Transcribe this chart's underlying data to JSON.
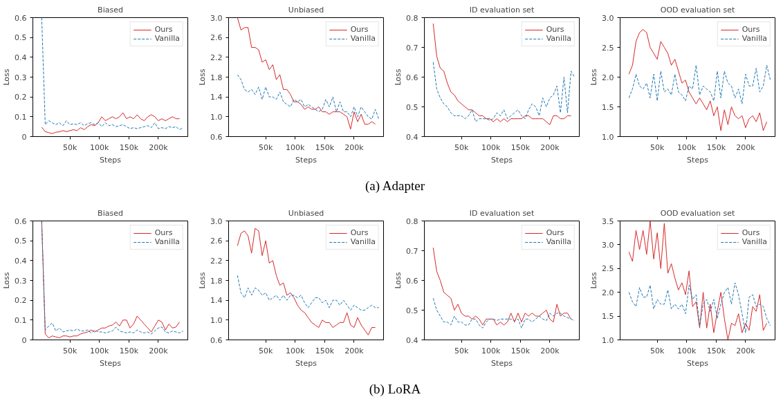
{
  "chart_data": [
    {
      "type": "line",
      "title": "Biased",
      "xlabel": "Steps",
      "ylabel": "Loss",
      "annotations": [
        "(a) Adapter"
      ],
      "xlim": [
        -13000,
        250000
      ],
      "xticks": [
        {
          "value": 50000,
          "label": "50k"
        },
        {
          "value": 100000,
          "label": "100k"
        },
        {
          "value": 150000,
          "label": "150k"
        },
        {
          "value": 200000,
          "label": "200k"
        }
      ],
      "ylim": [
        0,
        0.6
      ],
      "yticks": [
        0,
        0.1,
        0.2,
        0.3,
        0.4,
        0.5,
        0.6
      ],
      "grid": false,
      "legend": "top right",
      "x": [
        2000,
        8000,
        14000,
        20000,
        26000,
        32000,
        38000,
        44000,
        50000,
        56000,
        62000,
        68000,
        74000,
        80000,
        86000,
        92000,
        98000,
        104000,
        110000,
        116000,
        122000,
        128000,
        134000,
        140000,
        146000,
        152000,
        158000,
        164000,
        170000,
        176000,
        182000,
        188000,
        194000,
        200000,
        206000,
        212000,
        218000,
        224000,
        230000,
        236000,
        242000
      ],
      "series": [
        {
          "name": "Ours",
          "color": "#d62728",
          "line_style": "solid",
          "values": [
            0.047,
            0.025,
            0.02,
            0.015,
            0.022,
            0.024,
            0.03,
            0.025,
            0.03,
            0.035,
            0.03,
            0.045,
            0.035,
            0.05,
            0.06,
            0.055,
            0.07,
            0.1,
            0.08,
            0.09,
            0.1,
            0.09,
            0.1,
            0.12,
            0.09,
            0.1,
            0.09,
            0.11,
            0.09,
            0.08,
            0.1,
            0.11,
            0.1,
            0.08,
            0.09,
            0.08,
            0.09,
            0.1,
            0.09,
            0.09,
            null
          ]
        },
        {
          "name": "Vanilla",
          "color": "#1f77b4",
          "line_style": "dashed",
          "values": [
            0.6,
            0.06,
            0.08,
            0.07,
            0.06,
            0.07,
            0.055,
            0.08,
            0.06,
            0.065,
            0.06,
            0.07,
            0.055,
            0.065,
            0.07,
            0.06,
            0.07,
            0.05,
            0.07,
            0.055,
            0.06,
            0.05,
            0.055,
            0.06,
            0.05,
            0.04,
            0.045,
            0.04,
            0.045,
            0.05,
            0.055,
            0.045,
            0.07,
            0.04,
            0.045,
            0.04,
            0.05,
            0.045,
            0.05,
            0.035,
            0.045
          ]
        }
      ]
    },
    {
      "type": "line",
      "title": "Unbiased",
      "xlabel": "Steps",
      "ylabel": "Loss",
      "xlim": [
        -13000,
        250000
      ],
      "xticks": [
        {
          "value": 50000,
          "label": "50k"
        },
        {
          "value": 100000,
          "label": "100k"
        },
        {
          "value": 150000,
          "label": "150k"
        },
        {
          "value": 200000,
          "label": "200k"
        }
      ],
      "ylim": [
        0.6,
        3.0
      ],
      "yticks": [
        0.6,
        {
          "value": 1,
          "label": "1.0"
        },
        1.4,
        1.8,
        2.2,
        2.6,
        {
          "value": 3,
          "label": "3.0"
        }
      ],
      "grid": false,
      "legend": "top right",
      "x": [
        2000,
        8000,
        14000,
        20000,
        26000,
        32000,
        38000,
        44000,
        50000,
        56000,
        62000,
        68000,
        74000,
        80000,
        86000,
        92000,
        98000,
        104000,
        110000,
        116000,
        122000,
        128000,
        134000,
        140000,
        146000,
        152000,
        158000,
        164000,
        170000,
        176000,
        182000,
        188000,
        194000,
        200000,
        206000,
        212000,
        218000,
        224000,
        230000,
        236000,
        242000
      ],
      "series": [
        {
          "name": "Ours",
          "color": "#d62728",
          "line_style": "solid",
          "values": [
            3.0,
            2.75,
            2.8,
            2.8,
            2.4,
            2.4,
            2.35,
            2.1,
            2.15,
            1.95,
            2.05,
            1.75,
            1.85,
            1.55,
            1.55,
            1.45,
            1.3,
            1.3,
            1.25,
            1.15,
            1.2,
            1.15,
            1.15,
            1.2,
            1.1,
            1.1,
            1.05,
            1.1,
            1.1,
            1.1,
            1.05,
            1.0,
            0.75,
            1.1,
            0.9,
            1.05,
            0.85,
            0.85,
            0.9,
            0.85,
            null
          ]
        },
        {
          "name": "Vanilla",
          "color": "#1f77b4",
          "line_style": "dashed",
          "values": [
            1.85,
            1.75,
            1.55,
            1.5,
            1.55,
            1.45,
            1.6,
            1.35,
            1.6,
            1.4,
            1.4,
            1.35,
            1.5,
            1.3,
            1.25,
            1.2,
            1.35,
            1.3,
            1.35,
            1.2,
            1.25,
            1.2,
            1.15,
            1.1,
            1.15,
            1.35,
            1.2,
            1.4,
            1.1,
            1.3,
            1.1,
            1.1,
            1.0,
            1.2,
            1.0,
            1.2,
            1.1,
            1.0,
            0.95,
            1.15,
            0.95
          ]
        }
      ]
    },
    {
      "type": "line",
      "title": "ID evaluation set",
      "xlabel": "Steps",
      "ylabel": "Loss",
      "xlim": [
        -13000,
        250000
      ],
      "xticks": [
        {
          "value": 50000,
          "label": "50k"
        },
        {
          "value": 100000,
          "label": "100k"
        },
        {
          "value": 150000,
          "label": "150k"
        },
        {
          "value": 200000,
          "label": "200k"
        }
      ],
      "ylim": [
        0.4,
        0.8
      ],
      "yticks": [
        0.4,
        0.5,
        0.6,
        0.7,
        0.8
      ],
      "grid": false,
      "legend": "top right",
      "x": [
        2000,
        8000,
        14000,
        20000,
        26000,
        32000,
        38000,
        44000,
        50000,
        56000,
        62000,
        68000,
        74000,
        80000,
        86000,
        92000,
        98000,
        104000,
        110000,
        116000,
        122000,
        128000,
        134000,
        140000,
        146000,
        152000,
        158000,
        164000,
        170000,
        176000,
        182000,
        188000,
        194000,
        200000,
        206000,
        212000,
        218000,
        224000,
        230000,
        236000,
        242000
      ],
      "series": [
        {
          "name": "Ours",
          "color": "#d62728",
          "line_style": "solid",
          "values": [
            0.78,
            0.67,
            0.63,
            0.62,
            0.58,
            0.55,
            0.54,
            0.52,
            0.51,
            0.5,
            0.49,
            0.49,
            0.48,
            0.47,
            0.47,
            0.46,
            0.46,
            0.45,
            0.46,
            0.45,
            0.46,
            0.45,
            0.46,
            0.46,
            0.46,
            0.46,
            0.47,
            0.47,
            0.46,
            0.46,
            0.46,
            0.46,
            0.45,
            0.44,
            0.47,
            0.47,
            0.46,
            0.46,
            0.47,
            0.47,
            null
          ]
        },
        {
          "name": "Vanilla",
          "color": "#1f77b4",
          "line_style": "dashed",
          "values": [
            0.65,
            0.56,
            0.53,
            0.51,
            0.5,
            0.48,
            0.47,
            0.47,
            0.47,
            0.46,
            0.47,
            0.49,
            0.45,
            0.46,
            0.46,
            0.46,
            0.455,
            0.46,
            0.48,
            0.47,
            0.49,
            0.46,
            0.47,
            0.48,
            0.49,
            0.47,
            0.46,
            0.49,
            0.51,
            0.5,
            0.47,
            0.53,
            0.5,
            0.53,
            0.54,
            0.57,
            0.48,
            0.6,
            0.48,
            0.62,
            0.6
          ]
        }
      ]
    },
    {
      "type": "line",
      "title": "OOD evaluation set",
      "xlabel": "Steps",
      "ylabel": "Loss",
      "xlim": [
        -13000,
        250000
      ],
      "xticks": [
        {
          "value": 50000,
          "label": "50k"
        },
        {
          "value": 100000,
          "label": "100k"
        },
        {
          "value": 150000,
          "label": "150k"
        },
        {
          "value": 200000,
          "label": "200k"
        }
      ],
      "ylim": [
        1.0,
        3.0
      ],
      "yticks": [
        {
          "value": 1,
          "label": "1.0"
        },
        1.5,
        {
          "value": 2,
          "label": "2.0"
        },
        2.5,
        {
          "value": 3,
          "label": "3.0"
        }
      ],
      "grid": false,
      "legend": "top right",
      "x": [
        2000,
        8000,
        14000,
        20000,
        26000,
        32000,
        38000,
        44000,
        50000,
        56000,
        62000,
        68000,
        74000,
        80000,
        86000,
        92000,
        98000,
        104000,
        110000,
        116000,
        122000,
        128000,
        134000,
        140000,
        146000,
        152000,
        158000,
        164000,
        170000,
        176000,
        182000,
        188000,
        194000,
        200000,
        206000,
        212000,
        218000,
        224000,
        230000,
        236000,
        242000
      ],
      "series": [
        {
          "name": "Ours",
          "color": "#d62728",
          "line_style": "solid",
          "values": [
            2.05,
            2.2,
            2.6,
            2.75,
            2.8,
            2.75,
            2.5,
            2.4,
            2.3,
            2.6,
            2.5,
            2.4,
            2.2,
            2.3,
            2.1,
            1.9,
            1.95,
            1.75,
            1.65,
            1.55,
            1.65,
            1.55,
            1.45,
            1.6,
            1.35,
            1.5,
            1.1,
            1.45,
            1.2,
            1.5,
            1.35,
            1.3,
            1.35,
            1.15,
            1.3,
            1.35,
            1.25,
            1.4,
            1.1,
            1.25,
            null
          ]
        },
        {
          "name": "Vanilla",
          "color": "#1f77b4",
          "line_style": "dashed",
          "values": [
            1.65,
            1.8,
            2.05,
            1.85,
            1.8,
            1.9,
            1.65,
            2.05,
            1.6,
            2.1,
            1.75,
            1.8,
            1.7,
            2.05,
            1.75,
            1.7,
            1.6,
            1.85,
            1.8,
            2.2,
            1.7,
            1.85,
            1.8,
            1.75,
            1.6,
            2.1,
            1.65,
            2.1,
            1.9,
            1.85,
            1.65,
            1.8,
            1.55,
            2.05,
            1.85,
            1.85,
            2.15,
            1.75,
            1.85,
            2.2,
            1.95
          ]
        }
      ]
    },
    {
      "type": "line",
      "title": "Biased",
      "xlabel": "Steps",
      "ylabel": "Loss",
      "annotations": [
        "(b) LoRA"
      ],
      "xlim": [
        -13000,
        250000
      ],
      "xticks": [
        {
          "value": 50000,
          "label": "50k"
        },
        {
          "value": 100000,
          "label": "100k"
        },
        {
          "value": 150000,
          "label": "150k"
        },
        {
          "value": 200000,
          "label": "200k"
        }
      ],
      "ylim": [
        0,
        0.6
      ],
      "yticks": [
        0,
        0.1,
        0.2,
        0.3,
        0.4,
        0.5,
        0.6
      ],
      "grid": false,
      "legend": "top right",
      "x": [
        2000,
        8000,
        14000,
        20000,
        26000,
        32000,
        38000,
        44000,
        50000,
        56000,
        62000,
        68000,
        74000,
        80000,
        86000,
        92000,
        98000,
        104000,
        110000,
        116000,
        122000,
        128000,
        134000,
        140000,
        146000,
        152000,
        158000,
        164000,
        170000,
        176000,
        182000,
        188000,
        194000,
        200000,
        206000,
        212000,
        218000,
        224000,
        230000,
        236000,
        242000
      ],
      "series": [
        {
          "name": "Ours",
          "color": "#d62728",
          "line_style": "solid",
          "values": [
            0.6,
            0.03,
            0.01,
            0.02,
            0.015,
            0.01,
            0.02,
            0.02,
            0.015,
            0.02,
            0.02,
            0.03,
            0.035,
            0.04,
            0.05,
            0.04,
            0.05,
            0.06,
            0.06,
            0.07,
            0.075,
            0.09,
            0.07,
            0.1,
            0.1,
            0.06,
            0.08,
            0.12,
            0.1,
            0.08,
            0.06,
            0.04,
            0.07,
            0.1,
            0.09,
            0.05,
            0.08,
            0.06,
            0.065,
            0.09,
            null
          ]
        },
        {
          "name": "Vanilla",
          "color": "#1f77b4",
          "line_style": "dashed",
          "values": [
            0.6,
            0.05,
            0.07,
            0.085,
            0.045,
            0.06,
            0.04,
            0.045,
            0.05,
            0.045,
            0.055,
            0.045,
            0.045,
            0.05,
            0.035,
            0.05,
            0.04,
            0.04,
            0.035,
            0.04,
            0.045,
            0.065,
            0.045,
            0.04,
            0.035,
            0.04,
            0.035,
            0.05,
            0.04,
            0.035,
            0.04,
            0.03,
            0.045,
            0.06,
            0.065,
            0.04,
            0.035,
            0.045,
            0.04,
            0.035,
            0.045
          ]
        }
      ]
    },
    {
      "type": "line",
      "title": "Unbiased",
      "xlabel": "Steps",
      "ylabel": "Loss",
      "xlim": [
        -13000,
        250000
      ],
      "xticks": [
        {
          "value": 50000,
          "label": "50k"
        },
        {
          "value": 100000,
          "label": "100k"
        },
        {
          "value": 150000,
          "label": "150k"
        },
        {
          "value": 200000,
          "label": "200k"
        }
      ],
      "ylim": [
        0.6,
        3.0
      ],
      "yticks": [
        0.6,
        {
          "value": 1,
          "label": "1.0"
        },
        1.4,
        1.8,
        2.2,
        2.6,
        {
          "value": 3,
          "label": "3.0"
        }
      ],
      "grid": false,
      "legend": "top right",
      "x": [
        2000,
        8000,
        14000,
        20000,
        26000,
        32000,
        38000,
        44000,
        50000,
        56000,
        62000,
        68000,
        74000,
        80000,
        86000,
        92000,
        98000,
        104000,
        110000,
        116000,
        122000,
        128000,
        134000,
        140000,
        146000,
        152000,
        158000,
        164000,
        170000,
        176000,
        182000,
        188000,
        194000,
        200000,
        206000,
        212000,
        218000,
        224000,
        230000,
        236000,
        242000
      ],
      "series": [
        {
          "name": "Ours",
          "color": "#d62728",
          "line_style": "solid",
          "values": [
            2.5,
            2.75,
            2.8,
            2.7,
            2.35,
            2.85,
            2.8,
            2.3,
            2.6,
            2.15,
            2.2,
            1.9,
            1.7,
            1.75,
            1.5,
            1.55,
            1.45,
            1.3,
            1.2,
            1.15,
            1.05,
            0.95,
            0.9,
            0.85,
            1.0,
            0.95,
            0.95,
            0.85,
            0.9,
            0.95,
            0.95,
            1.15,
            0.9,
            0.85,
            1.05,
            0.9,
            0.8,
            0.7,
            0.85,
            0.85,
            null
          ]
        },
        {
          "name": "Vanilla",
          "color": "#1f77b4",
          "line_style": "dashed",
          "values": [
            1.9,
            1.55,
            1.45,
            1.65,
            1.5,
            1.65,
            1.6,
            1.5,
            1.55,
            1.4,
            1.45,
            1.5,
            1.4,
            1.5,
            1.4,
            1.5,
            1.5,
            1.45,
            1.5,
            1.35,
            1.25,
            1.35,
            1.45,
            1.45,
            1.35,
            1.4,
            1.25,
            1.4,
            1.4,
            1.3,
            1.4,
            1.3,
            1.2,
            1.3,
            1.25,
            1.2,
            1.2,
            1.25,
            1.3,
            1.25,
            1.25
          ]
        }
      ]
    },
    {
      "type": "line",
      "title": "ID evaluation set",
      "xlabel": "Steps",
      "ylabel": "Loss",
      "xlim": [
        -13000,
        250000
      ],
      "xticks": [
        {
          "value": 50000,
          "label": "50k"
        },
        {
          "value": 100000,
          "label": "100k"
        },
        {
          "value": 150000,
          "label": "150k"
        },
        {
          "value": 200000,
          "label": "200k"
        }
      ],
      "ylim": [
        0.4,
        0.8
      ],
      "yticks": [
        0.4,
        0.5,
        0.6,
        0.7,
        0.8
      ],
      "grid": false,
      "legend": "top right",
      "x": [
        2000,
        8000,
        14000,
        20000,
        26000,
        32000,
        38000,
        44000,
        50000,
        56000,
        62000,
        68000,
        74000,
        80000,
        86000,
        92000,
        98000,
        104000,
        110000,
        116000,
        122000,
        128000,
        134000,
        140000,
        146000,
        152000,
        158000,
        164000,
        170000,
        176000,
        182000,
        188000,
        194000,
        200000,
        206000,
        212000,
        218000,
        224000,
        230000,
        236000,
        242000
      ],
      "series": [
        {
          "name": "Ours",
          "color": "#d62728",
          "line_style": "solid",
          "values": [
            0.71,
            0.63,
            0.6,
            0.56,
            0.55,
            0.54,
            0.5,
            0.52,
            0.49,
            0.48,
            0.48,
            0.47,
            0.48,
            0.47,
            0.45,
            0.47,
            0.47,
            0.47,
            0.45,
            0.46,
            0.45,
            0.46,
            0.49,
            0.46,
            0.49,
            0.46,
            0.49,
            0.48,
            0.49,
            0.48,
            0.48,
            0.49,
            0.5,
            0.47,
            0.46,
            0.52,
            0.48,
            0.49,
            0.49,
            0.47,
            null
          ]
        },
        {
          "name": "Vanilla",
          "color": "#1f77b4",
          "line_style": "dashed",
          "values": [
            0.54,
            0.5,
            0.48,
            0.46,
            0.46,
            0.45,
            0.48,
            0.46,
            0.46,
            0.45,
            0.45,
            0.47,
            0.47,
            0.45,
            0.44,
            0.46,
            0.47,
            0.47,
            0.465,
            0.47,
            0.47,
            0.47,
            0.47,
            0.465,
            0.47,
            0.44,
            0.47,
            0.47,
            0.46,
            0.47,
            0.48,
            0.47,
            0.465,
            0.49,
            0.48,
            0.49,
            0.49,
            0.48,
            0.475,
            0.47,
            0.465
          ]
        }
      ]
    },
    {
      "type": "line",
      "title": "OOD evaluation set",
      "xlabel": "Steps",
      "ylabel": "Loss",
      "xlim": [
        -13000,
        250000
      ],
      "xticks": [
        {
          "value": 50000,
          "label": "50k"
        },
        {
          "value": 100000,
          "label": "100k"
        },
        {
          "value": 150000,
          "label": "150k"
        },
        {
          "value": 200000,
          "label": "200k"
        }
      ],
      "ylim": [
        1.0,
        3.5
      ],
      "yticks": [
        {
          "value": 1,
          "label": "1.0"
        },
        1.5,
        {
          "value": 2,
          "label": "2.0"
        },
        2.5,
        {
          "value": 3,
          "label": "3.0"
        },
        3.5
      ],
      "grid": false,
      "legend": "top right",
      "x": [
        2000,
        8000,
        14000,
        20000,
        26000,
        32000,
        38000,
        44000,
        50000,
        56000,
        62000,
        68000,
        74000,
        80000,
        86000,
        92000,
        98000,
        104000,
        110000,
        116000,
        122000,
        128000,
        134000,
        140000,
        146000,
        152000,
        158000,
        164000,
        170000,
        176000,
        182000,
        188000,
        194000,
        200000,
        206000,
        212000,
        218000,
        224000,
        230000,
        236000,
        242000
      ],
      "series": [
        {
          "name": "Ours",
          "color": "#d62728",
          "line_style": "solid",
          "values": [
            2.85,
            2.65,
            3.3,
            2.9,
            3.3,
            2.8,
            3.5,
            2.7,
            3.25,
            2.5,
            3.45,
            2.4,
            2.6,
            2.3,
            2.05,
            2.2,
            1.95,
            2.45,
            1.7,
            1.8,
            1.25,
            2.0,
            1.25,
            1.75,
            1.15,
            1.6,
            2.0,
            1.45,
            1.0,
            1.35,
            1.3,
            1.55,
            1.15,
            1.35,
            1.2,
            1.7,
            1.6,
            1.95,
            1.2,
            1.35,
            null
          ]
        },
        {
          "name": "Vanilla",
          "color": "#1f77b4",
          "line_style": "dashed",
          "values": [
            2.0,
            1.8,
            1.7,
            2.1,
            1.9,
            1.9,
            2.15,
            1.65,
            1.85,
            1.75,
            1.75,
            2.05,
            1.65,
            1.75,
            1.65,
            1.75,
            1.55,
            2.15,
            1.85,
            1.95,
            1.3,
            1.75,
            1.85,
            1.6,
            1.85,
            1.45,
            1.75,
            2.0,
            2.1,
            1.75,
            2.2,
            1.95,
            1.55,
            1.15,
            1.9,
            1.95,
            1.7,
            1.75,
            1.7,
            1.45,
            1.3
          ]
        }
      ]
    }
  ]
}
